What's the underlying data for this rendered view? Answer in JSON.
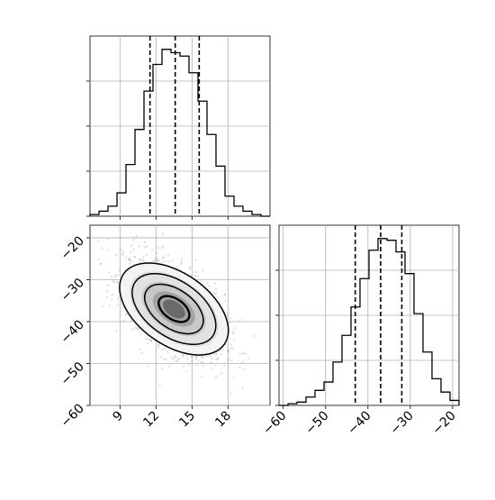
{
  "chart_data": [
    {
      "panel": "top-left",
      "type": "histogram",
      "variable": "x",
      "xlim": [
        6.5,
        21.5
      ],
      "x_ticks": [
        9,
        12,
        15,
        18
      ],
      "bin_edges": [
        6.5,
        7.25,
        8.0,
        8.75,
        9.5,
        10.25,
        11.0,
        11.75,
        12.5,
        13.25,
        14.0,
        14.75,
        15.5,
        16.25,
        17.0,
        17.75,
        18.5,
        19.25,
        20.0,
        20.75,
        21.5
      ],
      "counts": [
        0.01,
        0.03,
        0.06,
        0.14,
        0.31,
        0.52,
        0.75,
        0.91,
        1.0,
        0.98,
        0.96,
        0.86,
        0.69,
        0.49,
        0.3,
        0.12,
        0.06,
        0.03,
        0.01,
        0.0
      ],
      "ylim": [
        0,
        1.08
      ],
      "y_ticks_unlabeled": 4,
      "quantiles": [
        11.5,
        13.6,
        15.6
      ],
      "grid": true
    },
    {
      "panel": "bottom-left",
      "type": "heatmap",
      "subtype": "2d-histogram-with-contours",
      "x_variable": "x",
      "y_variable": "y",
      "xlim": [
        6.5,
        21.5
      ],
      "ylim": [
        -60,
        -17
      ],
      "x_ticks": [
        9,
        12,
        15,
        18
      ],
      "x_tick_labels": [
        "9",
        "12",
        "15",
        "18"
      ],
      "y_ticks": [
        -60,
        -50,
        -40,
        -30,
        -20
      ],
      "y_tick_labels": [
        "−60",
        "−50",
        "−40",
        "−30",
        "−20"
      ],
      "center": [
        13.5,
        -37
      ],
      "contour_levels": 4,
      "grid": true
    },
    {
      "panel": "bottom-right",
      "type": "histogram",
      "variable": "y",
      "xlim": [
        -61,
        -18.5
      ],
      "x_ticks": [
        -60,
        -50,
        -40,
        -30,
        -20
      ],
      "x_tick_labels": [
        "−60",
        "−50",
        "−40",
        "−30",
        "−20"
      ],
      "bin_edges": [
        -61.0,
        -58.875,
        -56.75,
        -54.625,
        -52.5,
        -50.375,
        -48.25,
        -46.125,
        -44.0,
        -41.875,
        -39.75,
        -37.625,
        -35.5,
        -33.375,
        -31.25,
        -29.125,
        -27.0,
        -24.875,
        -22.75,
        -20.625,
        -18.5
      ],
      "counts": [
        0.0,
        0.01,
        0.02,
        0.05,
        0.09,
        0.14,
        0.26,
        0.42,
        0.59,
        0.76,
        0.93,
        1.0,
        0.99,
        0.92,
        0.79,
        0.55,
        0.32,
        0.16,
        0.08,
        0.03
      ],
      "ylim": [
        0,
        1.08
      ],
      "y_ticks_unlabeled": 4,
      "quantiles": [
        -43,
        -37,
        -32
      ],
      "grid": true
    }
  ]
}
